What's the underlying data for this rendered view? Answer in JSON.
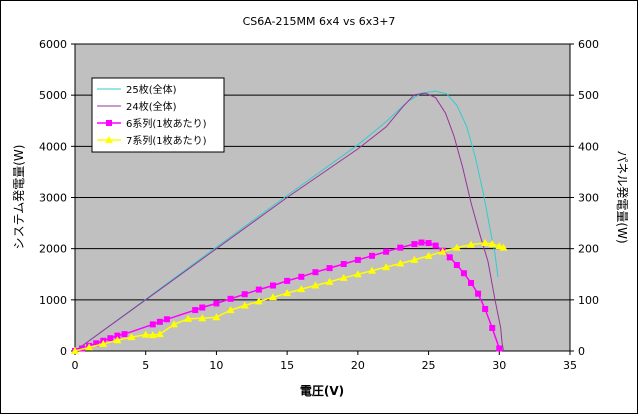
{
  "chart_data": {
    "type": "line",
    "title": "CS6A-215MM 6x4 vs 6x3+7",
    "xlabel": "電圧(V)",
    "ylabel": "システム発電量(W)",
    "y2label": "パネル発電量(W)",
    "xlim": [
      0,
      35
    ],
    "ylim": [
      0,
      6000
    ],
    "y2lim": [
      0,
      600
    ],
    "x_ticks": [
      "0",
      "5",
      "10",
      "15",
      "20",
      "25",
      "30",
      "35"
    ],
    "y_ticks": [
      "0",
      "1000",
      "2000",
      "3000",
      "4000",
      "5000",
      "6000"
    ],
    "y2_ticks": [
      "0",
      "100",
      "200",
      "300",
      "400",
      "500",
      "600"
    ],
    "grid": "horizontal",
    "legend_position": "top-left",
    "plot_background": "#C0C0C0",
    "series": [
      {
        "name": "25枚(全体)",
        "color": "#33CCCC",
        "axis": "left",
        "marker": "none",
        "x": [
          0,
          5,
          10,
          15,
          20,
          22,
          23.5,
          24.5,
          25.5,
          26.3,
          27,
          27.7,
          28.3,
          28.9,
          29.3,
          29.7,
          29.9
        ],
        "y": [
          0,
          1010,
          2030,
          3040,
          4030,
          4480,
          4870,
          5040,
          5080,
          5020,
          4800,
          4380,
          3800,
          3050,
          2450,
          1900,
          1450
        ]
      },
      {
        "name": "24枚(全体)",
        "color": "#993399",
        "axis": "left",
        "marker": "none",
        "x": [
          0,
          5,
          10,
          15,
          20,
          22,
          23.2,
          24,
          24.8,
          25.5,
          26.2,
          26.8,
          27.4,
          28,
          28.6,
          29.2,
          29.7,
          30.1,
          30.2,
          30.3
        ],
        "y": [
          0,
          1000,
          2000,
          3000,
          3950,
          4380,
          4780,
          5010,
          5040,
          4950,
          4650,
          4200,
          3600,
          2900,
          2300,
          1750,
          1000,
          450,
          150,
          0
        ]
      },
      {
        "name": "6系列(1枚あたり)",
        "color": "#FF00FF",
        "axis": "right",
        "marker": "square",
        "x": [
          0,
          0.5,
          1,
          1.5,
          2,
          2.5,
          3,
          3.5,
          5.5,
          6,
          6.5,
          8.5,
          9,
          10,
          11,
          12,
          13,
          14,
          15,
          16,
          17,
          18,
          19,
          20,
          21,
          22,
          23,
          24,
          24.5,
          25,
          25.5,
          26,
          26.5,
          27,
          27.5,
          28,
          28.5,
          29,
          29.5,
          30
        ],
        "y": [
          0,
          5,
          10,
          15,
          20,
          25,
          30,
          33,
          52,
          57,
          62,
          80,
          85,
          93,
          102,
          111,
          120,
          128,
          137,
          145,
          154,
          162,
          170,
          178,
          186,
          194,
          202,
          209,
          212,
          211,
          206,
          196,
          183,
          168,
          152,
          133,
          112,
          82,
          45,
          5
        ]
      },
      {
        "name": "7系列(1枚あたり)",
        "color": "#FFFF00",
        "axis": "right",
        "marker": "triangle",
        "x": [
          0,
          1,
          2,
          3,
          4,
          5,
          5.5,
          6,
          7,
          8,
          9,
          10,
          11,
          12,
          13,
          14,
          15,
          16,
          17,
          18,
          19,
          20,
          21,
          22,
          23,
          24,
          25,
          26,
          27,
          28,
          29,
          29.5,
          30,
          30.3
        ],
        "y": [
          0,
          7,
          14,
          21,
          27,
          32,
          31,
          33,
          52,
          63,
          64,
          66,
          80,
          89,
          97,
          105,
          113,
          121,
          128,
          135,
          143,
          150,
          157,
          164,
          171,
          178,
          186,
          194,
          202,
          208,
          211,
          209,
          205,
          202
        ]
      }
    ]
  }
}
